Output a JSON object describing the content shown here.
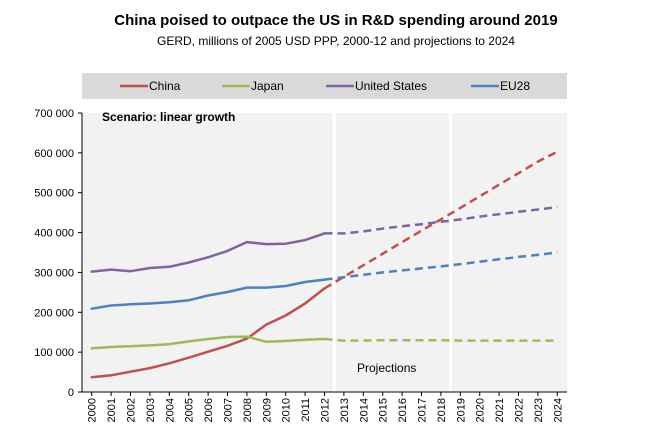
{
  "chart_data": {
    "type": "line",
    "title": "China poised to outpace the US in R&D spending around 2019",
    "subtitle": "GERD, millions of 2005 USD PPP, 2000-12 and projections to 2024",
    "xlabel": "",
    "ylabel": "",
    "ylim": [
      0,
      700000
    ],
    "yticks": [
      "0",
      "100 000",
      "200 000",
      "300 000",
      "400 000",
      "500 000",
      "600 000",
      "700 000"
    ],
    "ytick_values": [
      0,
      100000,
      200000,
      300000,
      400000,
      500000,
      600000,
      700000
    ],
    "x": [
      "2000",
      "2001",
      "2002",
      "2003",
      "2004",
      "2005",
      "2006",
      "2007",
      "2008",
      "2009",
      "2010",
      "2011",
      "2012",
      "2013",
      "2014",
      "2015",
      "2016",
      "2017",
      "2018",
      "2019",
      "2020",
      "2021",
      "2022",
      "2023",
      "2024"
    ],
    "projection_start_index": 12,
    "legend_position": "top",
    "annotations": {
      "scenario": "Scenario: linear growth",
      "projections": "Projections"
    },
    "series": [
      {
        "name": "China",
        "color": "#c0504d",
        "values": [
          37000,
          42000,
          51000,
          60000,
          72000,
          86000,
          101000,
          116000,
          134000,
          169000,
          192000,
          222000,
          260000,
          289000,
          318000,
          347000,
          376000,
          405000,
          433000,
          462000,
          491000,
          520000,
          549000,
          578000,
          603000
        ]
      },
      {
        "name": "Japan",
        "color": "#9bbb59",
        "values": [
          110000,
          113000,
          115000,
          117000,
          120000,
          127000,
          133000,
          138000,
          139000,
          126000,
          128000,
          131000,
          133000,
          129000,
          129000,
          130000,
          130000,
          130000,
          130000,
          129000,
          129000,
          129000,
          129000,
          129000,
          129000
        ]
      },
      {
        "name": "United States",
        "color": "#8064a2",
        "values": [
          302000,
          307000,
          303000,
          311000,
          314000,
          325000,
          338000,
          354000,
          376000,
          371000,
          372000,
          381000,
          398000,
          398000,
          403000,
          410000,
          416000,
          421000,
          427000,
          433000,
          440000,
          446000,
          452000,
          458000,
          464000
        ]
      },
      {
        "name": "EU28",
        "color": "#4f81bd",
        "values": [
          209000,
          217000,
          220000,
          222000,
          225000,
          230000,
          242000,
          251000,
          262000,
          262000,
          266000,
          276000,
          282000,
          288000,
          294000,
          300000,
          305000,
          310000,
          315000,
          321000,
          327000,
          333000,
          339000,
          344000,
          350000
        ]
      }
    ]
  }
}
